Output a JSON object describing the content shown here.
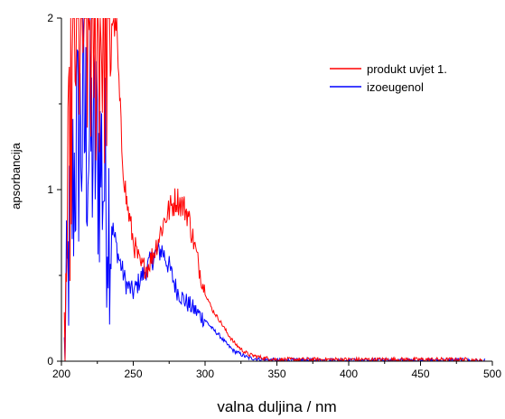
{
  "chart_data": {
    "type": "line",
    "xlabel": "valna duljina / nm",
    "ylabel": "apsorbancija",
    "xlim": [
      200,
      500
    ],
    "ylim": [
      0,
      2
    ],
    "x_ticks": [
      "200",
      "250",
      "300",
      "350",
      "400",
      "450",
      "500"
    ],
    "y_ticks": [
      "0",
      "1",
      "2"
    ],
    "legend_position": "top-right",
    "grid": false,
    "series": [
      {
        "name": "produkt uvjet 1.",
        "color": "#ff0000",
        "x": [
          202,
          205,
          208,
          210,
          212,
          215,
          218,
          220,
          225,
          230,
          235,
          238,
          240,
          242,
          245,
          250,
          255,
          260,
          265,
          270,
          272,
          275,
          278,
          280,
          282,
          285,
          288,
          290,
          295,
          300,
          305,
          310,
          315,
          320,
          325,
          330,
          340,
          350,
          360,
          380,
          400,
          420,
          450,
          480,
          495
        ],
        "y": [
          0.0,
          1.0,
          1.6,
          2.0,
          2.0,
          2.0,
          2.0,
          2.0,
          2.0,
          2.0,
          2.0,
          2.0,
          1.6,
          1.25,
          0.95,
          0.7,
          0.55,
          0.55,
          0.65,
          0.78,
          0.83,
          0.88,
          0.92,
          0.95,
          0.93,
          0.9,
          0.86,
          0.78,
          0.58,
          0.4,
          0.3,
          0.24,
          0.17,
          0.11,
          0.07,
          0.04,
          0.02,
          0.01,
          0.01,
          0.01,
          0.01,
          0.01,
          0.01,
          0.01,
          0.0
        ]
      },
      {
        "name": "izoeugenol",
        "color": "#0000ff",
        "x": [
          202,
          205,
          208,
          210,
          212,
          215,
          218,
          220,
          222,
          225,
          228,
          230,
          235,
          240,
          245,
          250,
          255,
          260,
          265,
          270,
          275,
          280,
          285,
          290,
          295,
          300,
          305,
          310,
          315,
          320,
          325,
          330,
          340,
          350,
          360,
          380,
          400,
          420,
          450,
          480,
          495
        ],
        "y": [
          0.0,
          0.6,
          1.0,
          1.2,
          1.3,
          1.35,
          1.32,
          1.28,
          1.25,
          1.22,
          1.15,
          1.05,
          0.8,
          0.6,
          0.45,
          0.4,
          0.48,
          0.55,
          0.62,
          0.65,
          0.55,
          0.42,
          0.36,
          0.32,
          0.28,
          0.24,
          0.19,
          0.15,
          0.1,
          0.06,
          0.04,
          0.02,
          0.01,
          0.005,
          0.005,
          0.005,
          0.005,
          0.005,
          0.005,
          0.005,
          0.0
        ]
      }
    ]
  }
}
